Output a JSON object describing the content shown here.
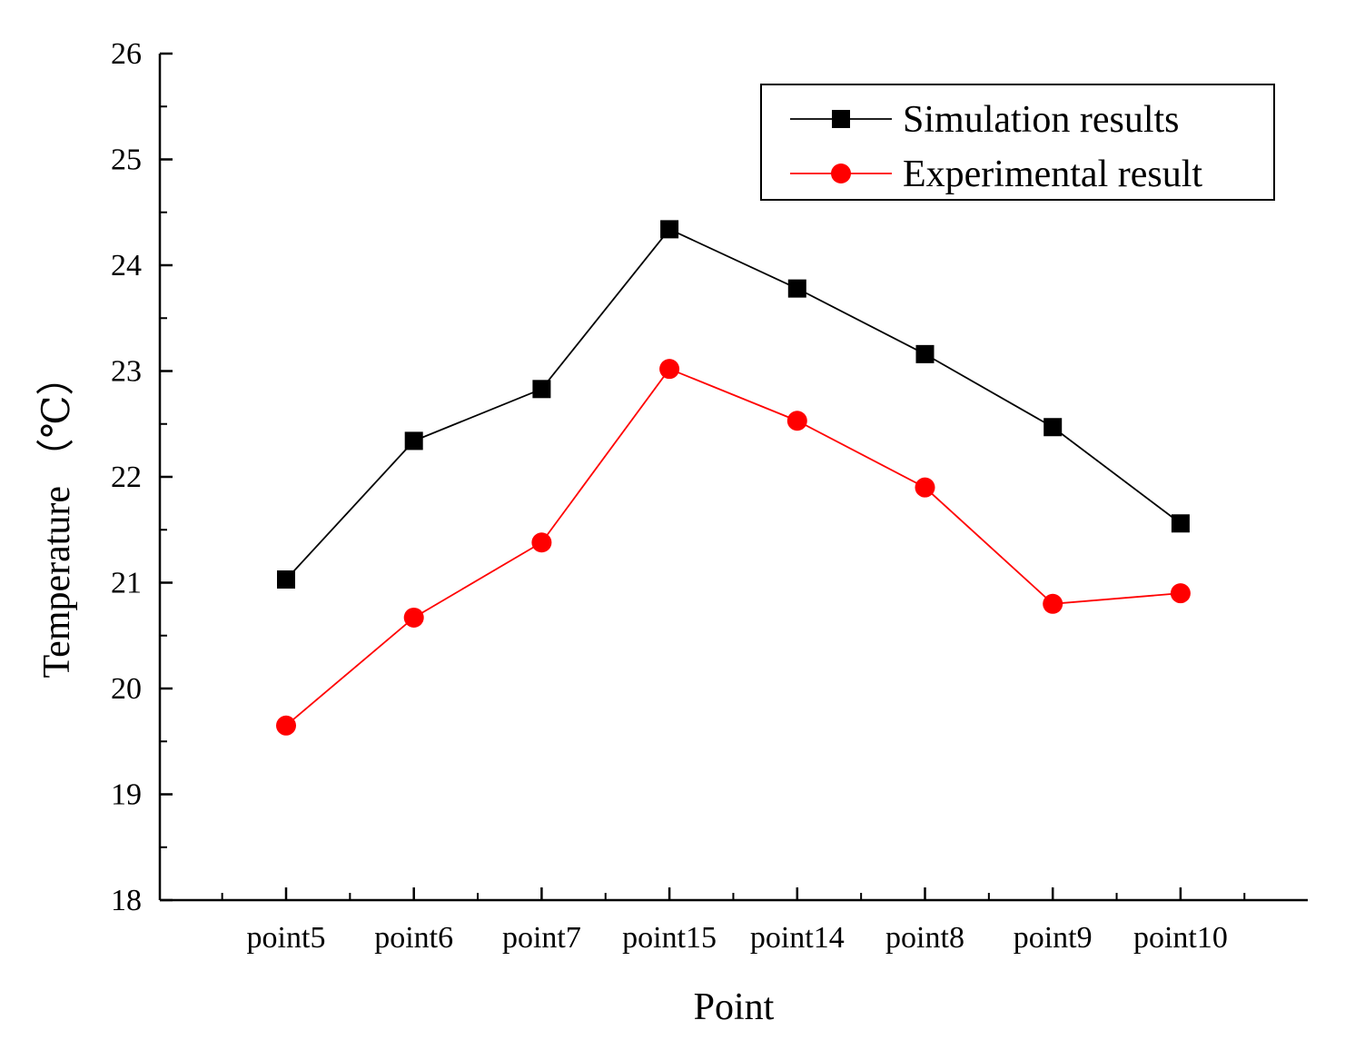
{
  "chart_data": {
    "type": "line",
    "title": "",
    "xlabel": "Point",
    "ylabel": "Temperature （℃）",
    "categories": [
      "point5",
      "point6",
      "point7",
      "point15",
      "point14",
      "point8",
      "point9",
      "point10"
    ],
    "ylim": [
      18,
      26
    ],
    "yticks": [
      "18",
      "19",
      "20",
      "21",
      "22",
      "23",
      "24",
      "25",
      "26"
    ],
    "grid": false,
    "legend_position": "top-right",
    "series": [
      {
        "name": "Simulation results",
        "color": "#000000",
        "marker": "square",
        "values": [
          21.03,
          22.34,
          22.83,
          24.34,
          23.78,
          23.16,
          22.47,
          21.56
        ]
      },
      {
        "name": "Experimental result",
        "color": "#ff0000",
        "marker": "circle",
        "values": [
          19.65,
          20.67,
          21.38,
          23.02,
          22.53,
          21.9,
          20.8,
          20.9
        ]
      }
    ]
  }
}
